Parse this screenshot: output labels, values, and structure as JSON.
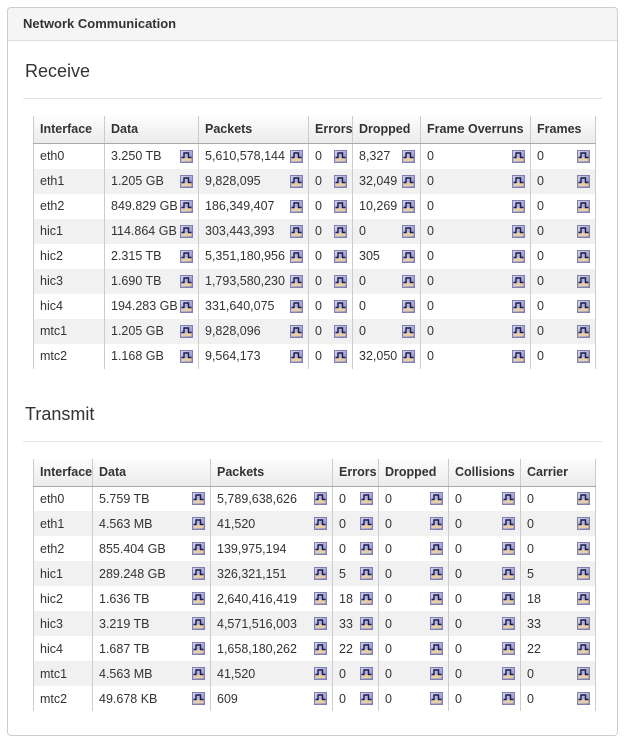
{
  "panel": {
    "title": "Network Communication"
  },
  "colors": {
    "panel_border": "#cccccc",
    "heading_bg": "#f5f5f5",
    "row_stripe": "#f1f1f1",
    "column_border": "#cccccc",
    "icon_gradient_top": "#d9d9f2",
    "icon_gradient_bottom": "#8181b5",
    "icon_sand": "#e7cfa9",
    "icon_line": "#1c1c4e"
  },
  "icons": {
    "cell_button": "chart-icon"
  },
  "sections": [
    {
      "id": "receive",
      "title": "Receive",
      "columns": [
        "Interface",
        "Data",
        "Packets",
        "Errors",
        "Dropped",
        "Frame Overruns",
        "Frames"
      ],
      "rows": [
        {
          "interface": "eth0",
          "cells": [
            "3.250 TB",
            "5,610,578,144",
            "0",
            "8,327",
            "0",
            "0"
          ]
        },
        {
          "interface": "eth1",
          "cells": [
            "1.205 GB",
            "9,828,095",
            "0",
            "32,049",
            "0",
            "0"
          ]
        },
        {
          "interface": "eth2",
          "cells": [
            "849.829 GB",
            "186,349,407",
            "0",
            "10,269",
            "0",
            "0"
          ]
        },
        {
          "interface": "hic1",
          "cells": [
            "114.864 GB",
            "303,443,393",
            "0",
            "0",
            "0",
            "0"
          ]
        },
        {
          "interface": "hic2",
          "cells": [
            "2.315 TB",
            "5,351,180,956",
            "0",
            "305",
            "0",
            "0"
          ]
        },
        {
          "interface": "hic3",
          "cells": [
            "1.690 TB",
            "1,793,580,230",
            "0",
            "0",
            "0",
            "0"
          ]
        },
        {
          "interface": "hic4",
          "cells": [
            "194.283 GB",
            "331,640,075",
            "0",
            "0",
            "0",
            "0"
          ]
        },
        {
          "interface": "mtc1",
          "cells": [
            "1.205 GB",
            "9,828,096",
            "0",
            "0",
            "0",
            "0"
          ]
        },
        {
          "interface": "mtc2",
          "cells": [
            "1.168 GB",
            "9,564,173",
            "0",
            "32,050",
            "0",
            "0"
          ]
        }
      ]
    },
    {
      "id": "transmit",
      "title": "Transmit",
      "columns": [
        "Interface",
        "Data",
        "Packets",
        "Errors",
        "Dropped",
        "Collisions",
        "Carrier"
      ],
      "rows": [
        {
          "interface": "eth0",
          "cells": [
            "5.759 TB",
            "5,789,638,626",
            "0",
            "0",
            "0",
            "0"
          ]
        },
        {
          "interface": "eth1",
          "cells": [
            "4.563 MB",
            "41,520",
            "0",
            "0",
            "0",
            "0"
          ]
        },
        {
          "interface": "eth2",
          "cells": [
            "855.404 GB",
            "139,975,194",
            "0",
            "0",
            "0",
            "0"
          ]
        },
        {
          "interface": "hic1",
          "cells": [
            "289.248 GB",
            "326,321,151",
            "5",
            "0",
            "0",
            "5"
          ]
        },
        {
          "interface": "hic2",
          "cells": [
            "1.636 TB",
            "2,640,416,419",
            "18",
            "0",
            "0",
            "18"
          ]
        },
        {
          "interface": "hic3",
          "cells": [
            "3.219 TB",
            "4,571,516,003",
            "33",
            "0",
            "0",
            "33"
          ]
        },
        {
          "interface": "hic4",
          "cells": [
            "1.687 TB",
            "1,658,180,262",
            "22",
            "0",
            "0",
            "22"
          ]
        },
        {
          "interface": "mtc1",
          "cells": [
            "4.563 MB",
            "41,520",
            "0",
            "0",
            "0",
            "0"
          ]
        },
        {
          "interface": "mtc2",
          "cells": [
            "49.678 KB",
            "609",
            "0",
            "0",
            "0",
            "0"
          ]
        }
      ]
    }
  ]
}
